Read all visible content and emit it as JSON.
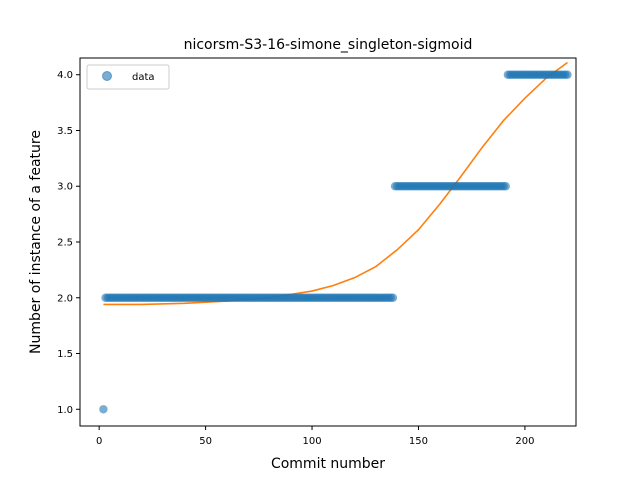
{
  "chart_data": {
    "type": "scatter",
    "title": "nicorsm-S3-16-simone_singleton-sigmoid",
    "xlabel": "Commit number",
    "ylabel": "Number of instance of a feature",
    "xlim": [
      -9,
      224
    ],
    "ylim": [
      0.85,
      4.15
    ],
    "xticks": [
      0,
      50,
      100,
      150,
      200
    ],
    "yticks": [
      1.0,
      1.5,
      2.0,
      2.5,
      3.0,
      3.5,
      4.0
    ],
    "grid": false,
    "legend": {
      "placement": "top-left",
      "entries": [
        "data"
      ]
    },
    "series": [
      {
        "name": "data",
        "kind": "scatter",
        "color": "#1f77b4",
        "segments": [
          {
            "x_start": 2,
            "x_end": 2,
            "y": 1
          },
          {
            "x_start": 3,
            "x_end": 138,
            "y": 2
          },
          {
            "x_start": 139,
            "x_end": 191,
            "y": 3
          },
          {
            "x_start": 192,
            "x_end": 220,
            "y": 4
          }
        ]
      },
      {
        "kind": "line",
        "color": "#ff7f0e",
        "x": [
          2,
          20,
          40,
          60,
          80,
          100,
          110,
          120,
          130,
          140,
          150,
          160,
          170,
          180,
          190,
          200,
          210,
          220
        ],
        "y": [
          1.94,
          1.94,
          1.95,
          1.97,
          2.0,
          2.06,
          2.11,
          2.18,
          2.28,
          2.43,
          2.61,
          2.84,
          3.09,
          3.35,
          3.59,
          3.79,
          3.97,
          4.11
        ]
      }
    ]
  }
}
